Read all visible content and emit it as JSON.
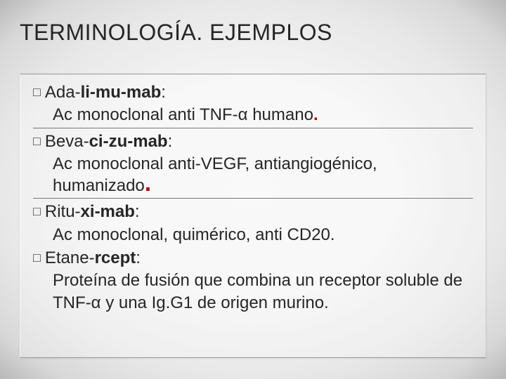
{
  "title": "TERMINOLOGÍA. EJEMPLOS",
  "items": [
    {
      "prefix": "Ada-",
      "bold": "li-mu-mab",
      "suffix": ":",
      "desc_parts": [
        "Ac monoclonal anti TNF-α humano",
        "."
      ],
      "hr_after": true
    },
    {
      "prefix": "Beva-",
      "bold": "ci-zu-mab",
      "suffix": ":",
      "desc_parts": [
        "Ac monoclonal anti-VEGF, antiangiogénico, humanizado",
        "."
      ],
      "hr_after": true,
      "big_red_period": true
    },
    {
      "prefix": "Ritu-",
      "bold": "xi-mab",
      "suffix": ":",
      "desc_parts": [
        "Ac monoclonal, quimérico, anti CD20."
      ],
      "hr_after": false
    },
    {
      "prefix": "Etane-",
      "bold": "rcept",
      "suffix": ":",
      "desc_parts": [
        "Proteína de fusión que combina un receptor soluble de TNF-α y una Ig.G1 de origen murino."
      ],
      "hr_after": false
    }
  ],
  "style": {
    "title_fontsize": 32,
    "body_fontsize": 24,
    "text_color": "#262626",
    "red_color": "#c00000",
    "hr_color": "#777777",
    "panel_border_color": "#999999",
    "bg_gradient_stops": [
      "#f7f7f7",
      "#f5f5f5",
      "#e8e8e8",
      "#d8d8d8",
      "#b8b8b8"
    ],
    "bullet_glyph": "□"
  }
}
